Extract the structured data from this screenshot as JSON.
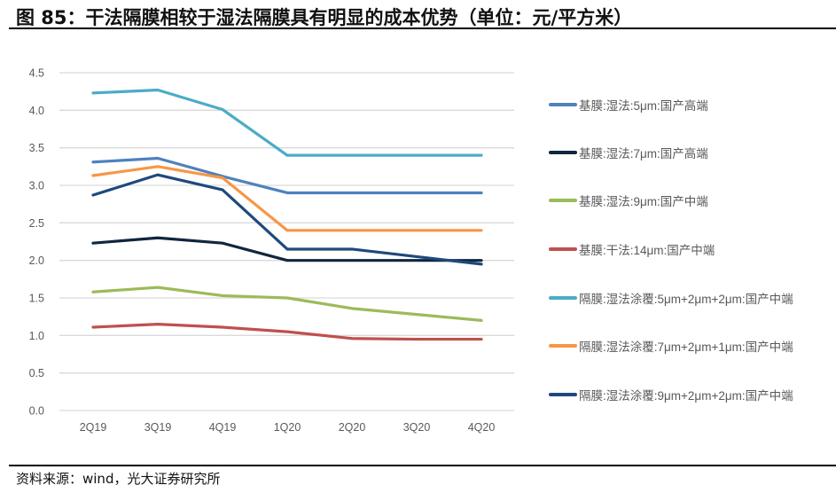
{
  "title": "图 85：干法隔膜相较于湿法隔膜具有明显的成本优势（单位：元/平方米）",
  "source": "资料来源：wind，光大证券研究所",
  "chart_data": {
    "type": "line",
    "title": "图 85：干法隔膜相较于湿法隔膜具有明显的成本优势（单位：元/平方米）",
    "xlabel": "",
    "ylabel": "元/平方米",
    "categories": [
      "2Q19",
      "3Q19",
      "4Q19",
      "1Q20",
      "2Q20",
      "3Q20",
      "4Q20"
    ],
    "ylim": [
      0,
      4.5
    ],
    "yticks": [
      "0.0",
      "0.5",
      "1.0",
      "1.5",
      "2.0",
      "2.5",
      "3.0",
      "3.5",
      "4.0",
      "4.5"
    ],
    "grid": true,
    "legend_position": "right",
    "series": [
      {
        "name": "基膜:湿法:5μm:国产高端",
        "color": "#4F81BD",
        "values": [
          3.31,
          3.36,
          3.12,
          2.9,
          2.9,
          2.9,
          2.9
        ]
      },
      {
        "name": "基膜:湿法:7μm:国产高端",
        "color": "#10253F",
        "values": [
          2.23,
          2.3,
          2.23,
          2.0,
          2.0,
          2.0,
          2.0
        ]
      },
      {
        "name": "基膜:湿法:9μm:国产中端",
        "color": "#9BBB59",
        "values": [
          1.58,
          1.64,
          1.53,
          1.5,
          1.36,
          1.28,
          1.2
        ]
      },
      {
        "name": "基膜:干法:14μm:国产中端",
        "color": "#C0504D",
        "values": [
          1.11,
          1.15,
          1.11,
          1.05,
          0.96,
          0.95,
          0.95
        ]
      },
      {
        "name": "隔膜:湿法涂覆:5μm+2μm+2μm:国产中端",
        "color": "#4BACC6",
        "values": [
          4.23,
          4.27,
          4.01,
          3.4,
          3.4,
          3.4,
          3.4
        ]
      },
      {
        "name": "隔膜:湿法涂覆:7μm+2μm+1μm:国产中端",
        "color": "#F79646",
        "values": [
          3.13,
          3.25,
          3.1,
          2.4,
          2.4,
          2.4,
          2.4
        ]
      },
      {
        "name": "隔膜:湿法涂覆:9μm+2μm+2μm:国产中端",
        "color": "#1F497D",
        "values": [
          2.87,
          3.14,
          2.94,
          2.15,
          2.15,
          2.05,
          1.95
        ]
      }
    ]
  }
}
